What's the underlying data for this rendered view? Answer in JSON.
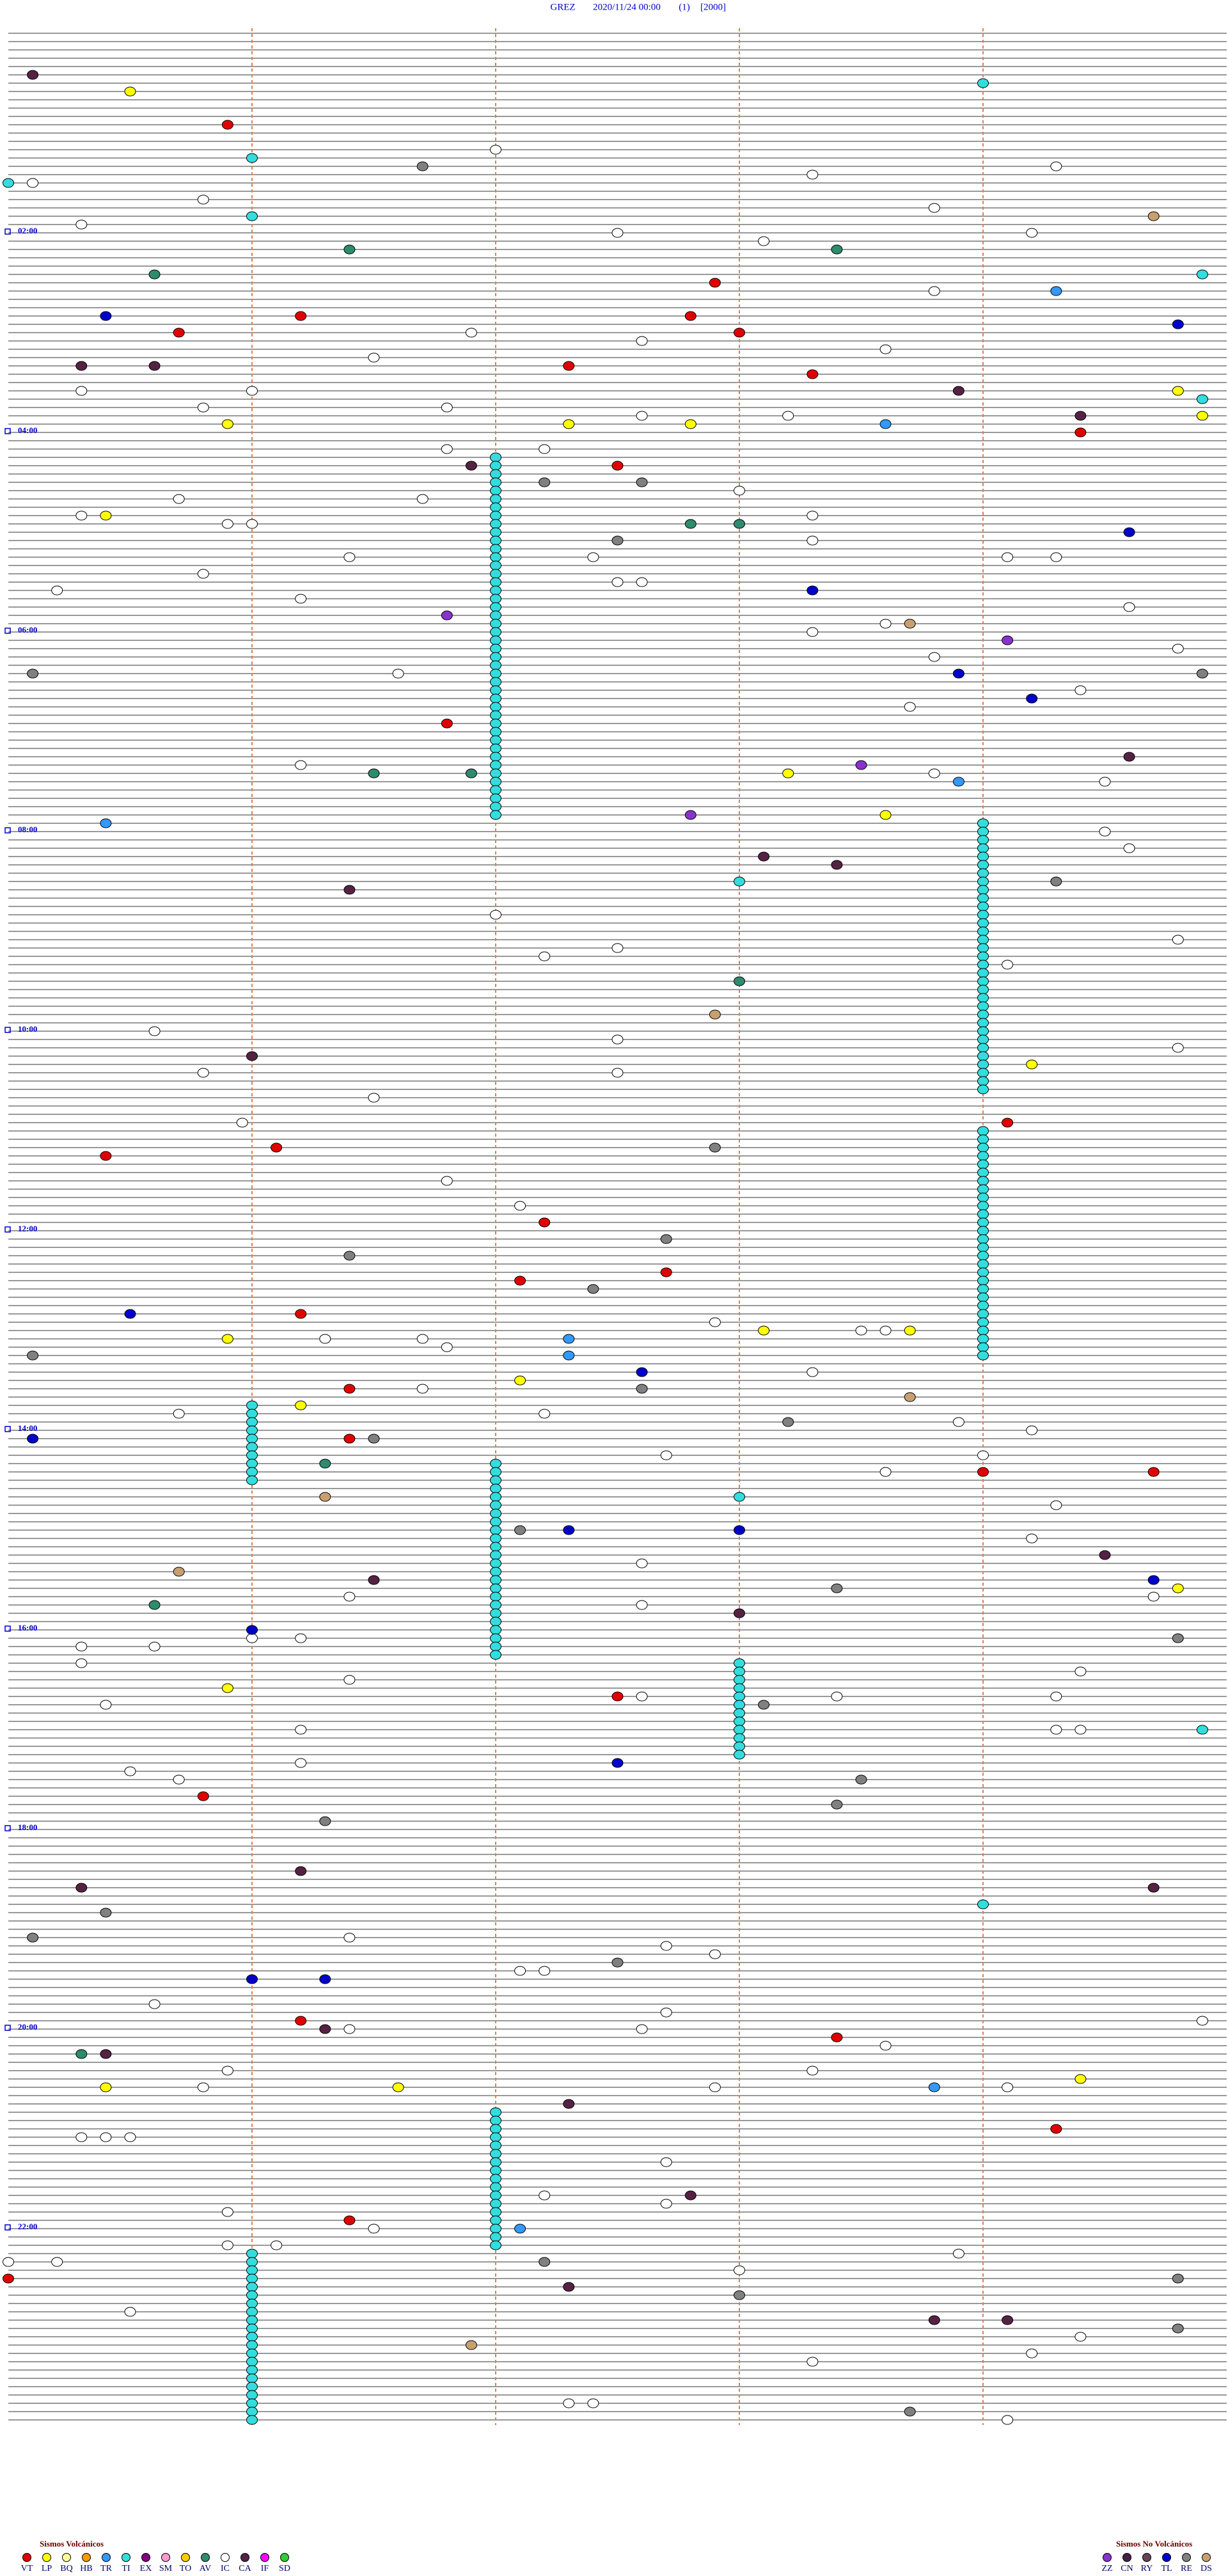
{
  "chart_data": {
    "type": "helicorder",
    "station": "GREZ",
    "datetime": "2020/11/24 00:00",
    "channel": "(1)",
    "scale": "[2000]",
    "xlim": [
      0,
      5
    ],
    "xticks": [
      1,
      2,
      3,
      4
    ],
    "ylim": [
      0,
      1440
    ],
    "yticks": [
      {
        "value": 120,
        "label": "02:00"
      },
      {
        "value": 240,
        "label": "04:00"
      },
      {
        "value": 360,
        "label": "06:00"
      },
      {
        "value": 480,
        "label": "08:00"
      },
      {
        "value": 600,
        "label": "10:00"
      },
      {
        "value": 720,
        "label": "12:00"
      },
      {
        "value": 840,
        "label": "14:00"
      },
      {
        "value": 960,
        "label": "16:00"
      },
      {
        "value": 1080,
        "label": "18:00"
      },
      {
        "value": 1200,
        "label": "20:00"
      },
      {
        "value": 1320,
        "label": "22:00"
      }
    ],
    "legend_title": "Sismos Volcánicos",
    "series": [
      {
        "name": "VT",
        "color": "#e00000",
        "values": [
          55.9,
          152.9,
          171.2,
          172.8,
          180.7,
          183,
          202.3,
          208.3,
          244.4,
          262.5,
          416.8,
          675.4,
          671.1,
          659.1,
          717.2,
          752.1,
          747.7,
          771.2,
          816.4,
          846.4,
          869,
          869.7,
          1002.5,
          1060.8,
          1196.2,
          1208.4,
          1264.3,
          1316.4,
          1350
        ]
      },
      {
        "name": "LP",
        "color": "#ffff00",
        "values": [
          35.5,
          290.4,
          235.9,
          237.3,
          237.8,
          448.2,
          473.6,
          624.2,
          785.9,
          783.1,
          783.7,
          826.2,
          812.1,
          939.8,
          995.9,
          1234.4,
          1235.4,
          1236.6,
          234.9,
          219.8
        ]
      },
      {
        "name": "BQ",
        "color": "#ffff99",
        "values": []
      },
      {
        "name": "HB",
        "color": "#ff9900",
        "values": []
      },
      {
        "name": "TR",
        "color": "#3399ff",
        "values": [
          475.4,
          159.3,
          238.6,
          453.9,
          787.3,
          797.3,
          1322.1,
          1238.8
        ]
      },
      {
        "name": "TI",
        "color": "#33dddd",
        "values": [
          257,
          262,
          267,
          272,
          277,
          282,
          287,
          292,
          297,
          302,
          307,
          312,
          317,
          322,
          327,
          332,
          337,
          342,
          347,
          352,
          357,
          362,
          367,
          372,
          377,
          382,
          387,
          392,
          397,
          402,
          407,
          412,
          417,
          422,
          427,
          432,
          437,
          442,
          447,
          452,
          457,
          462,
          467,
          472,
          479,
          484,
          489,
          494,
          499,
          504,
          509,
          514,
          519,
          524,
          529,
          534,
          539,
          544,
          549,
          554,
          559,
          564,
          569,
          574,
          579,
          584,
          589,
          594,
          599,
          604,
          609,
          614,
          619,
          624,
          629,
          634,
          639,
          664,
          669,
          674,
          679,
          684,
          689,
          694,
          699,
          704,
          709,
          714,
          719,
          724,
          729,
          734,
          739,
          744,
          749,
          754,
          759,
          764,
          769,
          774,
          779,
          784,
          789,
          794,
          799,
          826,
          831,
          836,
          841,
          846,
          851,
          856,
          861,
          866,
          871,
          862,
          867,
          872,
          877,
          882,
          887,
          892,
          897,
          902,
          907,
          912,
          917,
          922,
          927,
          932,
          937,
          942,
          947,
          952,
          957,
          962,
          967,
          972,
          977,
          983,
          988,
          993,
          998,
          1003,
          1008,
          1013,
          1018,
          1023,
          1028,
          1033,
          1038,
          1252,
          1257,
          1262,
          1267,
          1272,
          1277,
          1282,
          1287,
          1292,
          1297,
          1302,
          1307,
          1312,
          1317,
          1322,
          1327,
          1332,
          1336,
          1341,
          1346,
          1351,
          1356,
          1361,
          1366,
          1371,
          1376,
          1381,
          1386,
          1391,
          1396,
          1401,
          1406,
          1411,
          1416,
          1421,
          1426,
          1431,
          1436,
          76,
          111,
          34,
          513,
          1129,
          1024.9,
          90,
          149.9,
          224.9,
          883
        ]
      },
      {
        "name": "EX",
        "color": "#800080",
        "values": []
      },
      {
        "name": "SM",
        "color": "#ff99cc",
        "values": []
      },
      {
        "name": "TO",
        "color": "#ffcc00",
        "values": []
      },
      {
        "name": "AV",
        "color": "#2e8b6e",
        "values": [
          145.6,
          131.4,
          133.4,
          297.8,
          298,
          446.5,
          446.9,
          945.6,
          861.3,
          573,
          1215.3
        ]
      },
      {
        "name": "IC",
        "color": "#ffffff",
        "values": [
          90.1,
          100.8,
          72,
          88.3,
          108.8,
          84.3,
          115.3,
          122.5,
          128.1,
          124.2,
          158.8,
          181.9,
          187.6,
          196.5,
          193.6,
          215.3,
          216,
          226.8,
          225.8,
          232.6,
          233.2,
          251.8,
          252.2,
          280.7,
          281.7,
          278,
          290.3,
          295.9,
          296,
          293.3,
          308.3,
          316.4,
          317.4,
          319.1,
          319.3,
          325.8,
          332.5,
          332.6,
          341.2,
          349.6,
          335.2,
          363.3,
          358.6,
          378.8,
          374.8,
          386.6,
          408.7,
          399.4,
          441.2,
          448.8,
          454.5,
          484.5,
          494.6,
          532,
          549.8,
          557.2,
          552.5,
          564.1,
          600.6,
          614.8,
          607.5,
          625.8,
          627.5,
          641.5,
          655.96,
          691.8,
          707.1,
          786.3,
          786.7,
          791.8,
          777.9,
          783.5,
          783.6,
          816.7,
          808.3,
          830.7,
          832.2,
          838.9,
          844.2,
          857.7,
          859,
          868.6,
          889.3,
          909.2,
          922.6,
          941.4,
          947.6,
          944.7,
          966,
          966.2,
          970.3,
          970.6,
          980.3,
          991.4,
          989.4,
          1005.4,
          1002.6,
          1003.4,
          1004.3,
          1021.2,
          1024.3,
          1024.4,
          1041.2,
          1045.5,
          1050.7,
          1146.4,
          1152.7,
          1157.9,
          1167.1,
          1167.2,
          1185.6,
          1192.7,
          1199.9,
          1201.4,
          1202.6,
          1213.6,
          1225.9,
          1228.3,
          1235.8,
          1237.9,
          1239.1,
          1265.3,
          1265.4,
          1265.5,
          1282.7,
          1302.2,
          1307.7,
          1310.9,
          1321.5,
          1330.9,
          1331.1,
          1340,
          1340.2,
          1338.9,
          1348,
          1370.5,
          1403.3,
          1399.2,
          1427.4,
          1427.3,
          1439.1,
          1389.4
        ]
      },
      {
        "name": "CA",
        "color": "#552244",
        "values": [
          25.1,
          200.3,
          200.6,
          261.9,
          498.1,
          503.4,
          516.4,
          616,
          234.4,
          439.6,
          931.5,
          953,
          919.5,
          1115.3,
          1106.2,
          1201.3,
          1215.4,
          1247.3,
          1302.8,
          1357.3,
          1379.1,
          1378.8,
          1119.7,
          218.9
        ]
      },
      {
        "name": "IF",
        "color": "#ff00ff",
        "values": []
      },
      {
        "name": "SD",
        "color": "#33cc33",
        "values": []
      }
    ],
    "legend_title_nv": "Sismos No Volcánicos",
    "series_nv": [
      {
        "name": "ZZ",
        "color": "#8833cc",
        "values": [
          351.8,
          472.8,
          443.5,
          369.1
        ]
      },
      {
        "name": "CN",
        "color": "#442244",
        "values": []
      },
      {
        "name": "RY",
        "color": "#664455",
        "values": []
      },
      {
        "name": "TL",
        "color": "#0000cc",
        "values": [
          170.4,
          179.8,
          304.6,
          338.3,
          404.2,
          770.5,
          845.1,
          807.6,
          902.3,
          903,
          961,
          1042.5,
          1171,
          1171.3,
          934.7,
          388.9
        ]
      },
      {
        "name": "RE",
        "color": "#808080",
        "values": [
          81.7,
          272.2,
          272.6,
          307.5,
          672.9,
          727.7,
          757.4,
          736.4,
          795.1,
          817.6,
          838.2,
          846.5,
          902.1,
          938.4,
          969.8,
          1008.1,
          1053.5,
          1068.4,
          1076.3,
          1145.1,
          1130.4,
          1162.5,
          1363,
          1433.7,
          1342.2,
          385.1,
          389.9,
          514.3,
          1384.8,
          1354.8
        ]
      },
      {
        "name": "DS",
        "color": "#c8a070",
        "values": [
          114.7,
          358.7,
          592.9,
          925.7,
          881.3,
          823.7,
          1391.9
        ]
      }
    ]
  }
}
